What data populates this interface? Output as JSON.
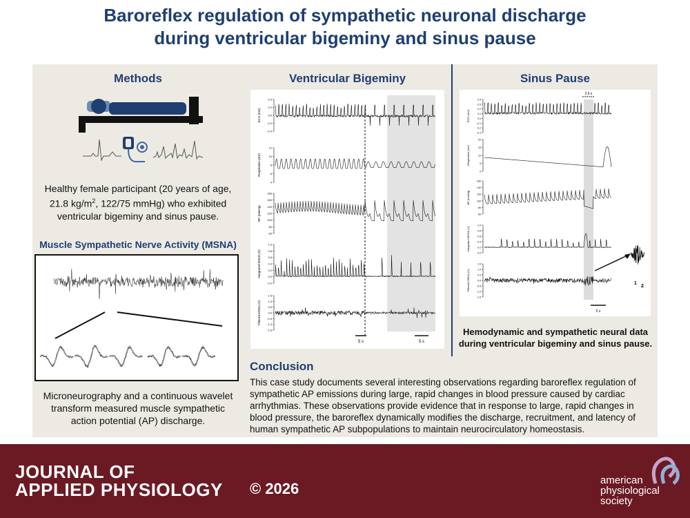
{
  "title_line1": "Baroreflex regulation of sympathetic neuronal discharge",
  "title_line2": "during ventricular bigeminy and sinus pause",
  "methods": {
    "heading": "Methods",
    "description_pre": "Healthy female participant (20 years of age, 21.8 kg/m",
    "description_sup": "2",
    "description_post": ", 122/75 mmHg) who exhibited ventricular bigeminy and sinus pause.",
    "msna_heading": "Muscle Sympathetic Nerve Activity (MSNA)",
    "msna_caption": "Microneurography and a continuous wavelet transform measured muscle sympathetic action potential (AP) discharge."
  },
  "bigeminy": {
    "heading": "Ventricular Bigeminy",
    "ylabels": [
      "ECG (mV)",
      "Respiration (mV)",
      "BP (mmHg)",
      "Integrated MSNA (V)",
      "Filtered MSNA (V)"
    ],
    "ecg_ticks": [
      "0.4",
      "0.2",
      "0.0",
      "-0.2",
      "-0.4"
    ],
    "resp_ticks": [
      "12",
      "10",
      "8",
      "6",
      "4"
    ],
    "bp_ticks": [
      "180",
      "160",
      "140",
      "120",
      "100",
      "80",
      "60"
    ],
    "int_ticks": [
      "1.0",
      "0.8",
      "0.6",
      "0.4",
      "0.2",
      "0.0",
      "-0.2"
    ],
    "filt_ticks": [
      "1.5",
      "1.0",
      "0.5",
      "0.0",
      "-0.5",
      "-1.0",
      "-1.5"
    ],
    "scale1": "5 s",
    "scale2": "5 s"
  },
  "sinus": {
    "heading": "Sinus Pause",
    "pause_label": "2.6 s",
    "ylabels": [
      "ECG (mV)",
      "Respiration (mV)",
      "BP (mmHg)",
      "Integrated MSNA (V)",
      "Filtered MSNA (V)"
    ],
    "ecg_ticks": [
      "0.4",
      "0.3",
      "0.2",
      "0.1",
      "0.0",
      "-0.1",
      "-0.2",
      "-0.3"
    ],
    "resp_ticks": [
      "20",
      "15",
      "10",
      "5",
      "0"
    ],
    "bp_ticks": [
      "160",
      "140",
      "120",
      "100",
      "80",
      "60"
    ],
    "int_ticks": [
      "1.0",
      "0.8",
      "0.6",
      "0.4",
      "0.2",
      "0.0"
    ],
    "filt_ticks": [
      "1.5",
      "1.0",
      "0.5",
      "0.0",
      "-0.5",
      "-1.0",
      "-1.5"
    ],
    "scale": "5 s",
    "inset_label1": "1",
    "inset_label2": "2",
    "caption_line1": "Hemodynamic and sympathetic neural data",
    "caption_line2": "during ventricular bigeminy and sinus pause."
  },
  "conclusion": {
    "heading": "Conclusion",
    "text": "This case study documents several interesting observations regarding baroreflex regulation of sympathetic AP emissions during large, rapid changes in blood pressure caused by cardiac arrhythmias. These observations provide evidence that in response to large, rapid changes in blood pressure, the baroreflex dynamically modifies the discharge, recruitment, and latency of human sympathetic AP subpopulations to maintain neurocirculatory homeostasis."
  },
  "footer": {
    "journal_line1": "JOURNAL OF",
    "journal_line2": "APPLIED PHYSIOLOGY",
    "copyright": "© 2026",
    "society_line1": "american",
    "society_line2": "physiological",
    "society_line3": "society"
  },
  "colors": {
    "title": "#1f3f72",
    "panel": "#edeae4",
    "footer": "#6b1a24",
    "accent_blue": "#3b66a6"
  }
}
